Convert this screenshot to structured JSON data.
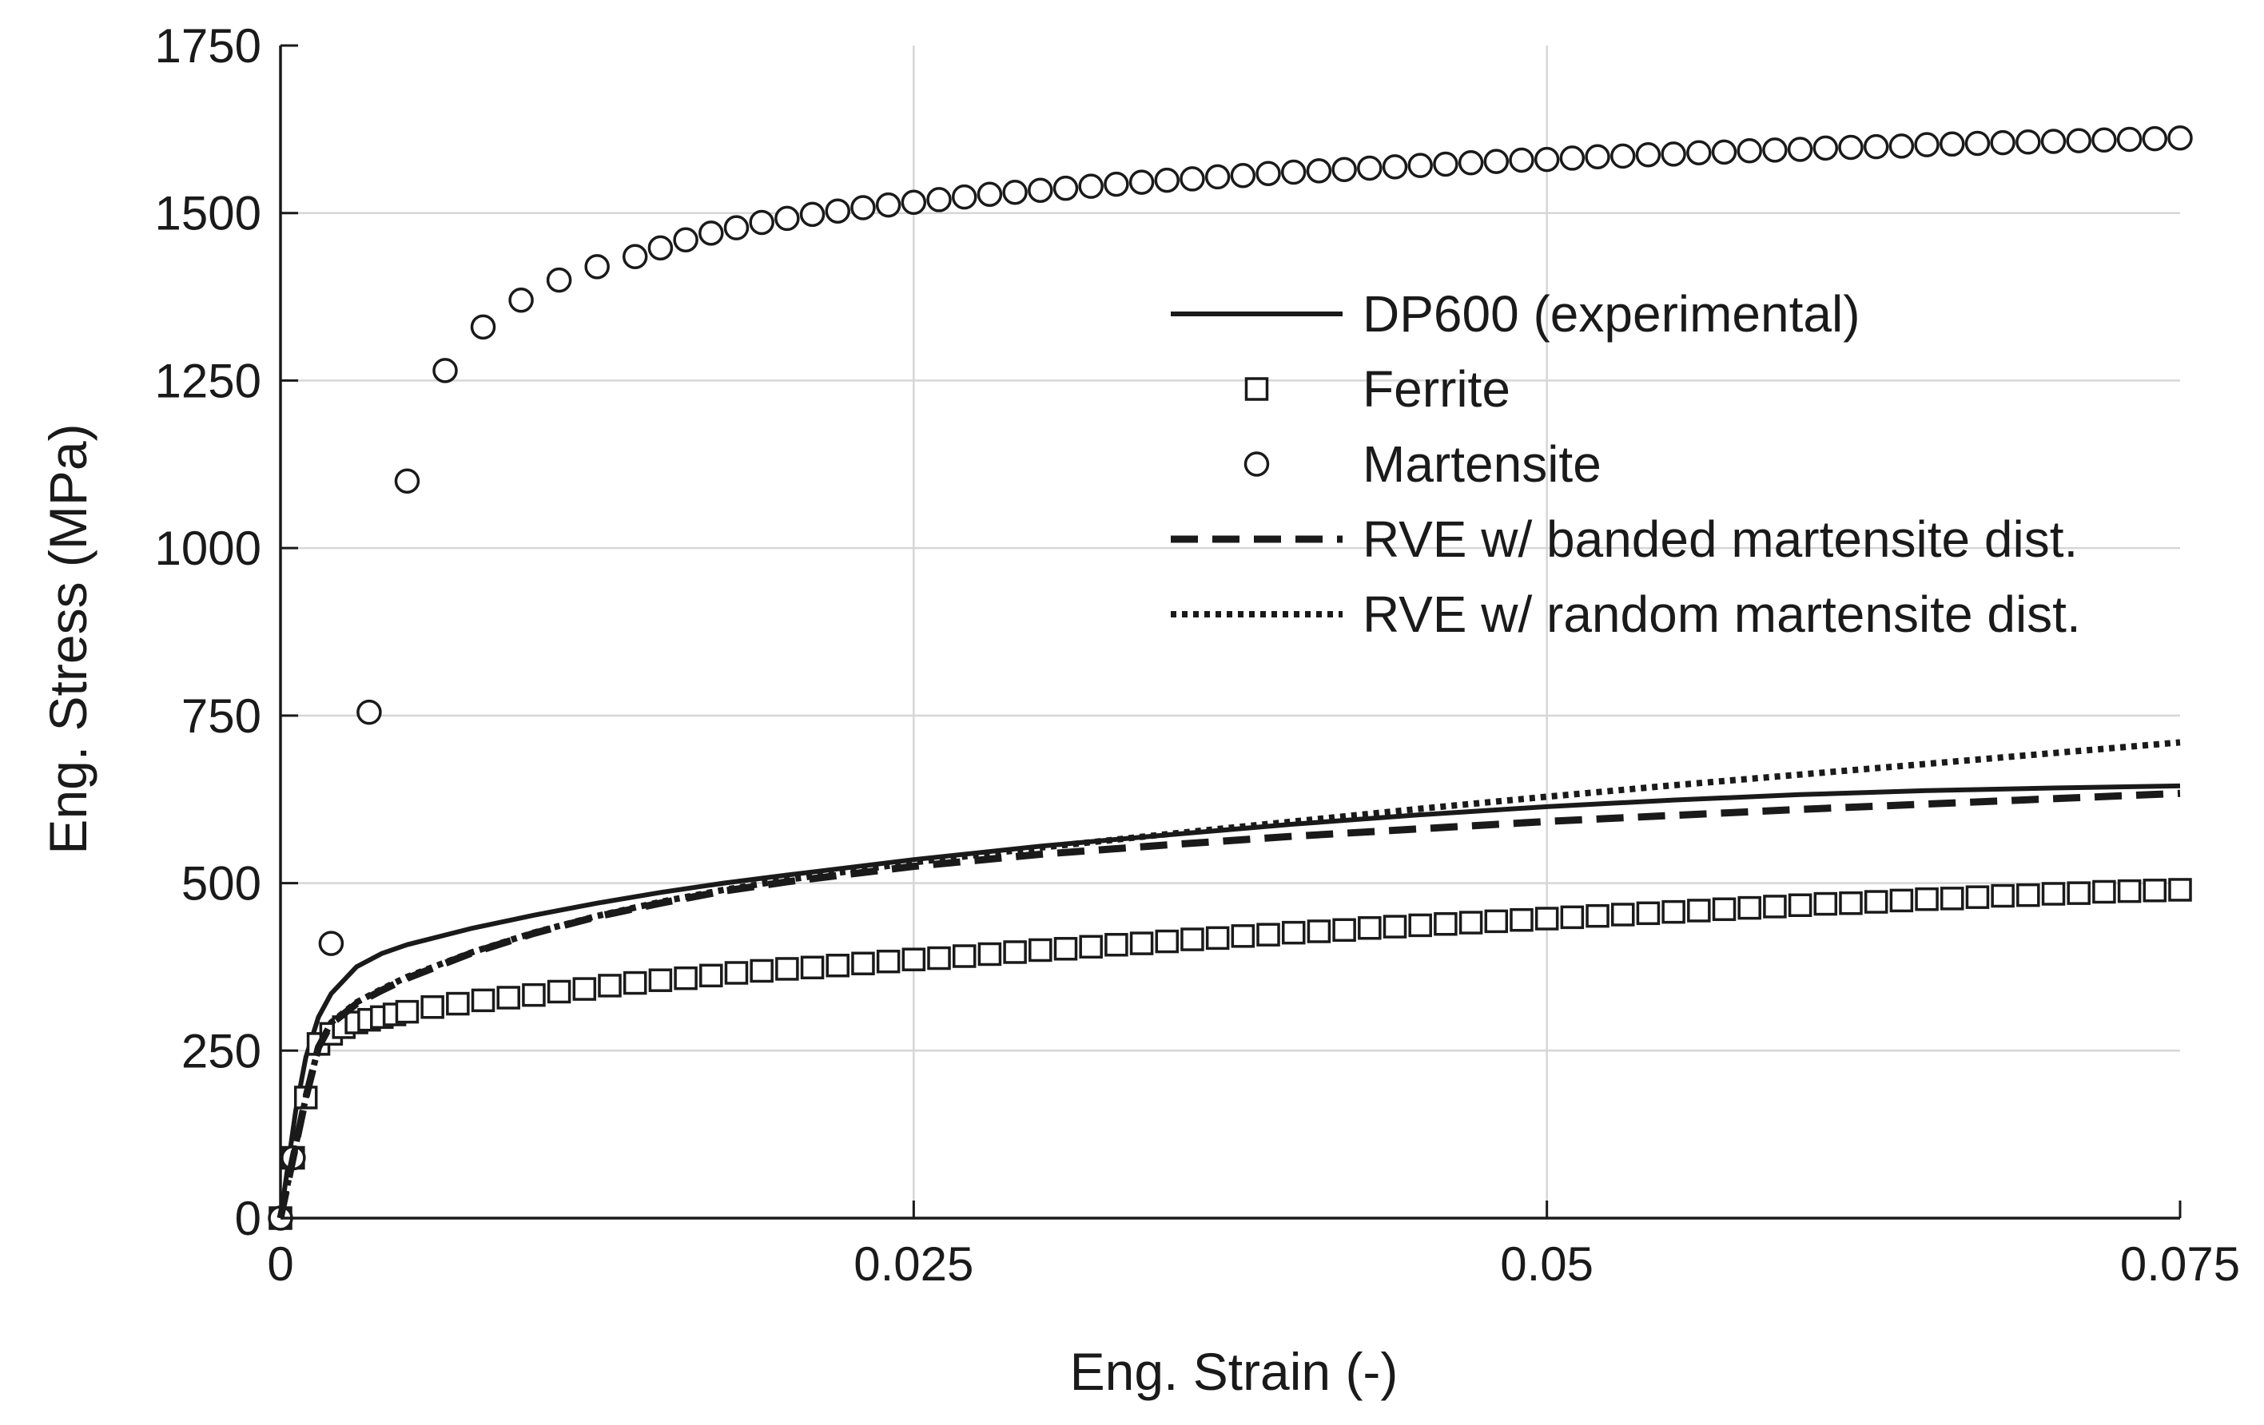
{
  "chart_data": {
    "type": "line",
    "title": "",
    "xlabel": "Eng. Strain (-)",
    "ylabel": "Eng. Stress (MPa)",
    "xlim": [
      0,
      0.075
    ],
    "ylim": [
      0,
      1750
    ],
    "x_ticks": [
      0,
      0.025,
      0.05,
      0.075
    ],
    "x_tick_labels": [
      "0",
      "0.025",
      "0.05",
      "0.075"
    ],
    "y_ticks": [
      0,
      250,
      500,
      750,
      1000,
      1250,
      1500,
      1750
    ],
    "y_tick_labels": [
      "0",
      "250",
      "500",
      "750",
      "1000",
      "1250",
      "1500",
      "1750"
    ],
    "grid": true,
    "legend_position": "top-right",
    "series": [
      {
        "name": "DP600 (experimental)",
        "style": "solid",
        "x": [
          0,
          0.0003,
          0.0006,
          0.001,
          0.0015,
          0.002,
          0.003,
          0.004,
          0.005,
          0.0075,
          0.01,
          0.0125,
          0.015,
          0.0175,
          0.02,
          0.025,
          0.03,
          0.035,
          0.04,
          0.045,
          0.05,
          0.055,
          0.06,
          0.065,
          0.07,
          0.075
        ],
        "y": [
          0,
          80,
          160,
          240,
          300,
          335,
          375,
          395,
          408,
          432,
          452,
          470,
          486,
          500,
          512,
          535,
          555,
          572,
          588,
          602,
          614,
          624,
          632,
          638,
          642,
          645
        ]
      },
      {
        "name": "Ferrite",
        "style": "square",
        "x": [
          0,
          0.0005,
          0.001,
          0.0015,
          0.002,
          0.0025,
          0.003,
          0.0035,
          0.004,
          0.0045,
          0.005,
          0.006,
          0.007,
          0.008,
          0.009,
          0.01,
          0.011,
          0.012,
          0.013,
          0.014,
          0.015,
          0.016,
          0.017,
          0.018,
          0.019,
          0.02,
          0.021,
          0.022,
          0.023,
          0.024,
          0.025,
          0.026,
          0.027,
          0.028,
          0.029,
          0.03,
          0.031,
          0.032,
          0.033,
          0.034,
          0.035,
          0.036,
          0.037,
          0.038,
          0.039,
          0.04,
          0.041,
          0.042,
          0.043,
          0.044,
          0.045,
          0.046,
          0.047,
          0.048,
          0.049,
          0.05,
          0.051,
          0.052,
          0.053,
          0.054,
          0.055,
          0.056,
          0.057,
          0.058,
          0.059,
          0.06,
          0.061,
          0.062,
          0.063,
          0.064,
          0.065,
          0.066,
          0.067,
          0.068,
          0.069,
          0.07,
          0.071,
          0.072,
          0.073,
          0.074,
          0.075
        ],
        "y": [
          0,
          90,
          180,
          260,
          275,
          285,
          292,
          296,
          300,
          304,
          308,
          315,
          320,
          325,
          329,
          333,
          338,
          342,
          347,
          351,
          355,
          358,
          362,
          366,
          369,
          372,
          374,
          377,
          380,
          383,
          386,
          388,
          391,
          394,
          397,
          400,
          402,
          405,
          408,
          410,
          413,
          416,
          418,
          421,
          423,
          426,
          428,
          430,
          433,
          435,
          437,
          439,
          441,
          443,
          445,
          447,
          449,
          451,
          453,
          455,
          457,
          459,
          461,
          463,
          465,
          467,
          469,
          470,
          472,
          474,
          476,
          477,
          479,
          481,
          482,
          484,
          485,
          487,
          488,
          489,
          490
        ]
      },
      {
        "name": "Martensite",
        "style": "circle",
        "x": [
          0,
          0.0005,
          0.002,
          0.0035,
          0.005,
          0.0065,
          0.008,
          0.0095,
          0.011,
          0.0125,
          0.014,
          0.015,
          0.016,
          0.017,
          0.018,
          0.019,
          0.02,
          0.021,
          0.022,
          0.023,
          0.024,
          0.025,
          0.026,
          0.027,
          0.028,
          0.029,
          0.03,
          0.031,
          0.032,
          0.033,
          0.034,
          0.035,
          0.036,
          0.037,
          0.038,
          0.039,
          0.04,
          0.041,
          0.042,
          0.043,
          0.044,
          0.045,
          0.046,
          0.047,
          0.048,
          0.049,
          0.05,
          0.051,
          0.052,
          0.053,
          0.054,
          0.055,
          0.056,
          0.057,
          0.058,
          0.059,
          0.06,
          0.061,
          0.062,
          0.063,
          0.064,
          0.065,
          0.066,
          0.067,
          0.068,
          0.069,
          0.07,
          0.071,
          0.072,
          0.073,
          0.074,
          0.075
        ],
        "y": [
          0,
          90,
          410,
          755,
          1100,
          1265,
          1330,
          1370,
          1400,
          1420,
          1435,
          1448,
          1460,
          1470,
          1478,
          1486,
          1492,
          1498,
          1503,
          1508,
          1512,
          1516,
          1520,
          1524,
          1528,
          1531,
          1534,
          1537,
          1540,
          1543,
          1546,
          1549,
          1551,
          1554,
          1556,
          1559,
          1561,
          1563,
          1565,
          1567,
          1569,
          1571,
          1573,
          1575,
          1577,
          1579,
          1580,
          1582,
          1584,
          1585,
          1587,
          1588,
          1590,
          1591,
          1593,
          1594,
          1595,
          1597,
          1598,
          1599,
          1600,
          1602,
          1603,
          1604,
          1605,
          1606,
          1607,
          1608,
          1609,
          1610,
          1611,
          1612
        ]
      },
      {
        "name": "RVE w/ banded martensite dist.",
        "style": "dashed",
        "x": [
          0,
          0.0005,
          0.001,
          0.0015,
          0.002,
          0.003,
          0.004,
          0.005,
          0.0075,
          0.01,
          0.0125,
          0.015,
          0.0175,
          0.02,
          0.025,
          0.03,
          0.035,
          0.04,
          0.045,
          0.05,
          0.055,
          0.06,
          0.065,
          0.07,
          0.075
        ],
        "y": [
          0,
          90,
          180,
          255,
          290,
          320,
          340,
          358,
          395,
          425,
          450,
          470,
          488,
          502,
          525,
          543,
          557,
          570,
          581,
          592,
          601,
          610,
          618,
          626,
          634
        ]
      },
      {
        "name": "RVE w/ random martensite dist.",
        "style": "dotted",
        "x": [
          0,
          0.0005,
          0.001,
          0.0015,
          0.002,
          0.003,
          0.004,
          0.005,
          0.0075,
          0.01,
          0.0125,
          0.015,
          0.0175,
          0.02,
          0.025,
          0.03,
          0.035,
          0.04,
          0.045,
          0.05,
          0.055,
          0.06,
          0.065,
          0.07,
          0.075
        ],
        "y": [
          0,
          90,
          180,
          255,
          292,
          322,
          342,
          360,
          396,
          426,
          451,
          472,
          490,
          505,
          531,
          553,
          573,
          592,
          611,
          629,
          646,
          662,
          678,
          694,
          710
        ]
      }
    ]
  }
}
